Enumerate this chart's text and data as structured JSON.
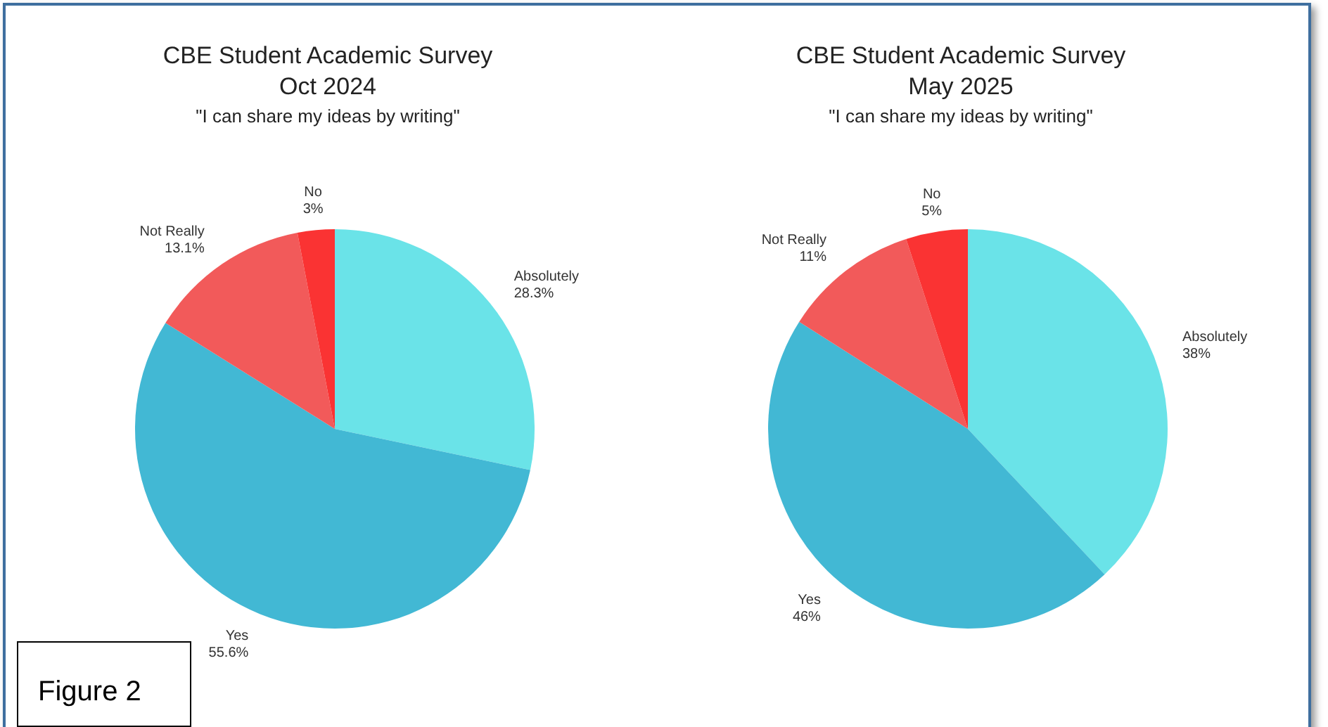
{
  "chart_data": [
    {
      "type": "pie",
      "title": "CBE Student Academic Survey",
      "subtitle": "Oct 2024",
      "annotations": [
        "\"I can share my ideas by writing\"",
        "Figure 2"
      ],
      "categories": [
        "Absolutely",
        "Yes",
        "Not Really",
        "No"
      ],
      "values": [
        28.3,
        55.6,
        13.1,
        3
      ],
      "value_labels": [
        "28.3%",
        "55.6%",
        "13.1%",
        "3%"
      ],
      "colors": [
        "#6ae3e8",
        "#42b8d4",
        "#f25a5a",
        "#fa3333"
      ]
    },
    {
      "type": "pie",
      "title": "CBE Student Academic Survey",
      "subtitle": "May 2025",
      "annotations": [
        "\"I can share my ideas by writing\""
      ],
      "categories": [
        "Absolutely",
        "Yes",
        "Not Really",
        "No"
      ],
      "values": [
        38,
        46,
        11,
        5
      ],
      "value_labels": [
        "38%",
        "46%",
        "11%",
        "5%"
      ],
      "colors": [
        "#6ae3e8",
        "#42b8d4",
        "#f25a5a",
        "#fa3333"
      ]
    }
  ]
}
